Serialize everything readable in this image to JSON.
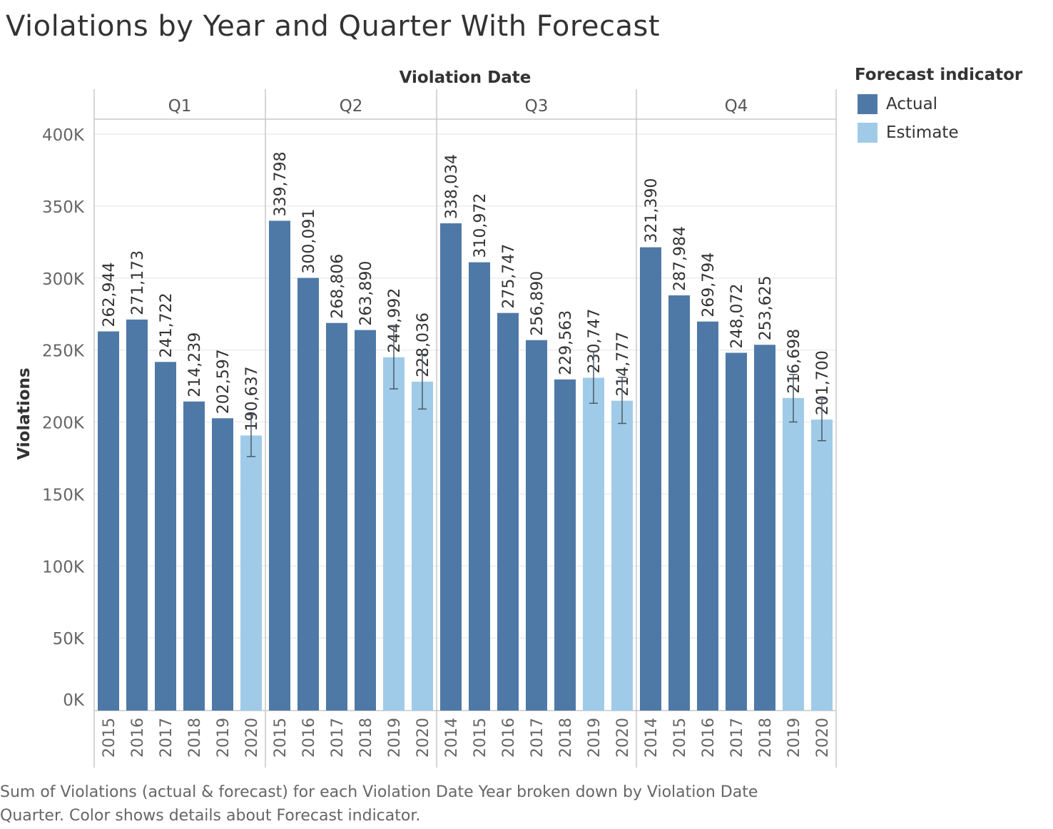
{
  "title": "Violations by Year and Quarter With Forecast",
  "caption": "Sum of Violations (actual & forecast)  for each Violation Date Year broken down by Violation Date Quarter.  Color shows details about Forecast indicator.",
  "colors": {
    "actual": "#4e79a7",
    "estimate": "#a0cbe8",
    "error_bar": "#4a5a6a"
  },
  "legend": {
    "title": "Forecast indicator",
    "items": [
      {
        "label": "Actual",
        "color": "#4e79a7"
      },
      {
        "label": "Estimate",
        "color": "#a0cbe8"
      }
    ]
  },
  "chart_data": {
    "type": "bar",
    "xlabel": "Violation Date",
    "ylabel": "Violations",
    "ylim": [
      0,
      400000
    ],
    "yticks": [
      {
        "value": 0,
        "label": "0K"
      },
      {
        "value": 50000,
        "label": "50K"
      },
      {
        "value": 100000,
        "label": "100K"
      },
      {
        "value": 150000,
        "label": "150K"
      },
      {
        "value": 200000,
        "label": "200K"
      },
      {
        "value": 250000,
        "label": "250K"
      },
      {
        "value": 300000,
        "label": "300K"
      },
      {
        "value": 350000,
        "label": "350K"
      },
      {
        "value": 400000,
        "label": "400K"
      }
    ],
    "grid": true,
    "legend_position": "top-right",
    "panels": [
      {
        "quarter": "Q1",
        "bars": [
          {
            "year": "2015",
            "value": 262944,
            "label": "262,944",
            "type": "Actual"
          },
          {
            "year": "2016",
            "value": 271173,
            "label": "271,173",
            "type": "Actual"
          },
          {
            "year": "2017",
            "value": 241722,
            "label": "241,722",
            "type": "Actual"
          },
          {
            "year": "2018",
            "value": 214239,
            "label": "214,239",
            "type": "Actual"
          },
          {
            "year": "2019",
            "value": 202597,
            "label": "202,597",
            "type": "Actual"
          },
          {
            "year": "2020",
            "value": 190637,
            "label": "190,637",
            "type": "Estimate",
            "ci": [
              176000,
              205000
            ]
          }
        ]
      },
      {
        "quarter": "Q2",
        "bars": [
          {
            "year": "2015",
            "value": 339798,
            "label": "339,798",
            "type": "Actual"
          },
          {
            "year": "2016",
            "value": 300091,
            "label": "300,091",
            "type": "Actual"
          },
          {
            "year": "2017",
            "value": 268806,
            "label": "268,806",
            "type": "Actual"
          },
          {
            "year": "2018",
            "value": 263890,
            "label": "263,890",
            "type": "Actual"
          },
          {
            "year": "2019",
            "value": 244992,
            "label": "244,992",
            "type": "Estimate",
            "ci": [
              223000,
              267000
            ]
          },
          {
            "year": "2020",
            "value": 228036,
            "label": "228,036",
            "type": "Estimate",
            "ci": [
              209000,
              247000
            ]
          }
        ]
      },
      {
        "quarter": "Q3",
        "bars": [
          {
            "year": "2014",
            "value": 338034,
            "label": "338,034",
            "type": "Actual"
          },
          {
            "year": "2015",
            "value": 310972,
            "label": "310,972",
            "type": "Actual"
          },
          {
            "year": "2016",
            "value": 275747,
            "label": "275,747",
            "type": "Actual"
          },
          {
            "year": "2017",
            "value": 256890,
            "label": "256,890",
            "type": "Actual"
          },
          {
            "year": "2018",
            "value": 229563,
            "label": "229,563",
            "type": "Actual"
          },
          {
            "year": "2019",
            "value": 230747,
            "label": "230,747",
            "type": "Estimate",
            "ci": [
              213000,
              249000
            ]
          },
          {
            "year": "2020",
            "value": 214777,
            "label": "214,777",
            "type": "Estimate",
            "ci": [
              199000,
              231000
            ]
          }
        ]
      },
      {
        "quarter": "Q4",
        "bars": [
          {
            "year": "2014",
            "value": 321390,
            "label": "321,390",
            "type": "Actual"
          },
          {
            "year": "2015",
            "value": 287984,
            "label": "287,984",
            "type": "Actual"
          },
          {
            "year": "2016",
            "value": 269794,
            "label": "269,794",
            "type": "Actual"
          },
          {
            "year": "2017",
            "value": 248072,
            "label": "248,072",
            "type": "Actual"
          },
          {
            "year": "2018",
            "value": 253625,
            "label": "253,625",
            "type": "Actual"
          },
          {
            "year": "2019",
            "value": 216698,
            "label": "216,698",
            "type": "Estimate",
            "ci": [
              200000,
              233000
            ]
          },
          {
            "year": "2020",
            "value": 201700,
            "label": "201,700",
            "type": "Estimate",
            "ci": [
              187000,
              216000
            ]
          }
        ]
      }
    ]
  }
}
